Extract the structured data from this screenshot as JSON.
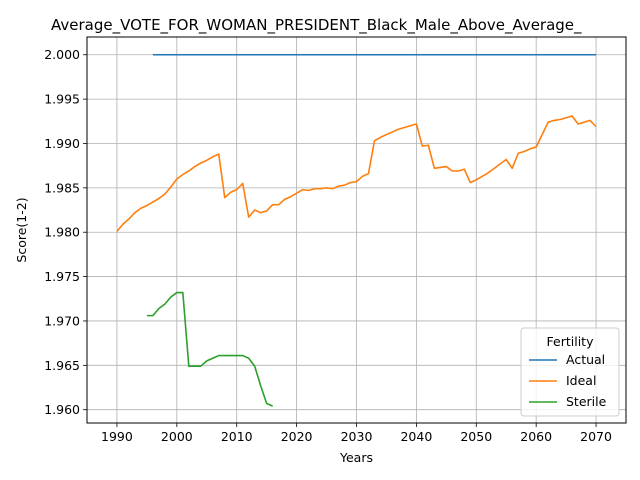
{
  "chart_data": {
    "type": "line",
    "title": "Average_VOTE_FOR_WOMAN_PRESIDENT_Black_Male_Above_Average_",
    "xlabel": "Years",
    "ylabel": "Score(1-2)",
    "xlim": [
      1985,
      2075
    ],
    "ylim": [
      1.9585,
      2.002
    ],
    "xticks": [
      1990,
      2000,
      2010,
      2020,
      2030,
      2040,
      2050,
      2060,
      2070
    ],
    "yticks": [
      1.96,
      1.965,
      1.97,
      1.975,
      1.98,
      1.985,
      1.99,
      1.995,
      2.0
    ],
    "ytick_labels": [
      "1.960",
      "1.965",
      "1.970",
      "1.975",
      "1.980",
      "1.985",
      "1.990",
      "1.995",
      "2.000"
    ],
    "grid": true,
    "legend": {
      "title": "Fertility",
      "placement": "lower-right"
    },
    "series": [
      {
        "name": "Actual",
        "color": "#1f77b4",
        "x": [
          1996,
          2070
        ],
        "y": [
          2.0,
          2.0
        ]
      },
      {
        "name": "Ideal",
        "color": "#ff7f0e",
        "x": [
          1990,
          1991,
          1992,
          1993,
          1994,
          1995,
          1996,
          1997,
          1998,
          1999,
          2000,
          2001,
          2002,
          2003,
          2004,
          2005,
          2006,
          2007,
          2008,
          2009,
          2010,
          2011,
          2012,
          2013,
          2014,
          2015,
          2016,
          2017,
          2018,
          2019,
          2020,
          2021,
          2022,
          2023,
          2024,
          2025,
          2026,
          2027,
          2028,
          2029,
          2030,
          2031,
          2032,
          2033,
          2034,
          2035,
          2036,
          2037,
          2038,
          2039,
          2040,
          2041,
          2042,
          2043,
          2044,
          2045,
          2046,
          2047,
          2048,
          2049,
          2050,
          2051,
          2052,
          2053,
          2054,
          2055,
          2056,
          2057,
          2058,
          2059,
          2060,
          2061,
          2062,
          2063,
          2064,
          2065,
          2066,
          2067,
          2068,
          2069,
          2070
        ],
        "y": [
          1.9801,
          1.9809,
          1.9815,
          1.9822,
          1.9827,
          1.983,
          1.9834,
          1.9838,
          1.9843,
          1.9851,
          1.986,
          1.9865,
          1.9869,
          1.9874,
          1.9878,
          1.9881,
          1.9885,
          1.9888,
          1.9839,
          1.9845,
          1.9848,
          1.9855,
          1.9817,
          1.9825,
          1.9822,
          1.9824,
          1.9831,
          1.9831,
          1.9837,
          1.984,
          1.9844,
          1.9848,
          1.9847,
          1.9849,
          1.9849,
          1.985,
          1.9849,
          1.9852,
          1.9853,
          1.9856,
          1.9857,
          1.9863,
          1.9866,
          1.9903,
          1.9907,
          1.991,
          1.9913,
          1.9916,
          1.9918,
          1.992,
          1.9922,
          1.9897,
          1.9898,
          1.9872,
          1.9873,
          1.9874,
          1.9869,
          1.9869,
          1.9871,
          1.9856,
          1.9859,
          1.9863,
          1.9867,
          1.9872,
          1.9877,
          1.9882,
          1.9872,
          1.9889,
          1.9891,
          1.9894,
          1.9896,
          1.991,
          1.9924,
          1.9926,
          1.9927,
          1.9929,
          1.9931,
          1.9922,
          1.9924,
          1.9926,
          1.9919
        ]
      },
      {
        "name": "Sterile",
        "color": "#2ca02c",
        "x": [
          1995,
          1996,
          1997,
          1998,
          1999,
          2000,
          2001,
          2002,
          2003,
          2004,
          2005,
          2006,
          2007,
          2008,
          2009,
          2010,
          2011,
          2012,
          2013,
          2014,
          2015,
          2016
        ],
        "y": [
          1.9706,
          1.9706,
          1.9714,
          1.9719,
          1.9727,
          1.9732,
          1.9732,
          1.9649,
          1.9649,
          1.9649,
          1.9655,
          1.9658,
          1.9661,
          1.9661,
          1.9661,
          1.9661,
          1.9661,
          1.9658,
          1.9649,
          1.9627,
          1.9607,
          1.9604
        ]
      }
    ]
  }
}
